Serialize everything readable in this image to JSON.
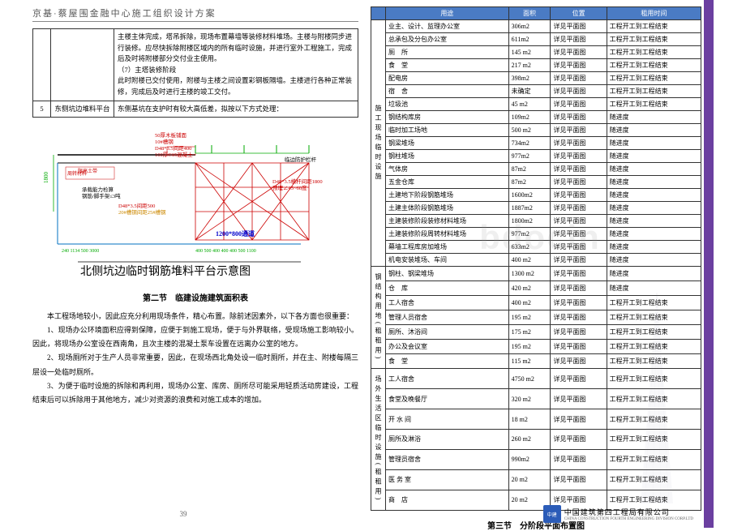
{
  "header": {
    "title": "京基·蔡屋围金融中心施工组织设计方案"
  },
  "topTable": {
    "row1text": "主楼主体完成，塔吊拆除，现场布置幕墙等装修材料堆场。主楼与附楼同步进行装修。应尽快拆除附楼区域内的所有临时设施，并进行室外工程施工，完成后及时将附楼部分交付业主使用。\n（7）主塔装修阶段\n此时附楼已交付使用，附楼与主楼之间设置彩钢板隔墙。主楼进行各种正常装修，完成后及时进行主楼的竣工交付。",
    "row2num": "5",
    "row2label": "东侧坑边堆料平台",
    "row2text": "东侧基坑在支护时有较大高低差，拟按以下方式处理："
  },
  "diagram": {
    "caption": "北侧坑边临时钢筋堆料平台示意图",
    "labels": {
      "a": "50厚木板铺面",
      "b": "10#槽钢",
      "c": "D48*3.5间距400",
      "d": "100厚C15混凝土",
      "e": "临边防护栏杆",
      "f": "D48*3.5横杆间距1800",
      "g": "预埋∠45~60度",
      "h": "D48*3.5间距500",
      "i": "20#槽钢间距25#槽钢",
      "j": "1200*800通道",
      "k": "限高土带",
      "l": "周转材料"
    },
    "dims": [
      "1800",
      "240",
      "1134",
      "500",
      "3000",
      "400",
      "500",
      "400",
      "400",
      "500",
      "1100"
    ]
  },
  "section2": {
    "title": "第二节　临建设施建筑面积表",
    "p1": "本工程场地较小，因此应充分利用现场条件，精心布置。除前述因素外，以下各方面也很重要：",
    "p2": "1、现场办公环境面积应得到保障，应便于到施工现场，便于与外界联络，受现场施工影响较小。因此，将现场办公室设在西南角，且次主楼的混凝土泵车设置在远离办公室的地方。",
    "p3": "2、现场厕所对于生产人员非常重要，因此，在现场西北角处设一临时厕所，并在主、附楼每隔三层设一处临时厕所。",
    "p4": "3、为便于临时设施的拆除和再利用，现场办公室、库房、厕所尽可能采用轻质活动房建设，工程结束后可以拆除用于其他地方，减少对资源的浪费和对施工成本的增加。"
  },
  "section3": {
    "title": "第三节　分阶段平面布置图"
  },
  "mainTable": {
    "headers": [
      "用途",
      "面积",
      "位置",
      "租用时间"
    ],
    "groups": [
      {
        "label": "施工现场临时设施",
        "rows": [
          [
            "业主、设计、监理办公室",
            "306m2",
            "详见平面图",
            "工程开工到工程结束"
          ],
          [
            "总承包及分包办公室",
            "611m2",
            "详见平面图",
            "工程开工到工程结束"
          ],
          [
            "厕　所",
            "145 m2",
            "详见平面图",
            "工程开工到工程结束"
          ],
          [
            "食　堂",
            "217 m2",
            "详见平面图",
            "工程开工到工程结束"
          ],
          [
            "配电房",
            "398m2",
            "详见平面图",
            "工程开工到工程结束"
          ],
          [
            "宿　舍",
            "未确定",
            "详见平面图",
            "工程开工到工程结束"
          ],
          [
            "垃圾池",
            "45 m2",
            "详见平面图",
            "工程开工到工程结束"
          ],
          [
            "钢结构库房",
            "109m2",
            "详见平面图",
            "随进度"
          ],
          [
            "临时加工场地",
            "500 m2",
            "详见平面图",
            "随进度"
          ],
          [
            "钢梁堆场",
            "734m2",
            "详见平面图",
            "随进度"
          ],
          [
            "钢柱堆场",
            "977m2",
            "详见平面图",
            "随进度"
          ],
          [
            "气体房",
            "87m2",
            "详见平面图",
            "随进度"
          ],
          [
            "五金仓库",
            "87m2",
            "详见平面图",
            "随进度"
          ],
          [
            "土建地下阶段钢筋堆场",
            "1600m2",
            "详见平面图",
            "随进度"
          ],
          [
            "土建主体阶段钢筋堆场",
            "1887m2",
            "详见平面图",
            "随进度"
          ],
          [
            "主建装修阶段装修材料堆场",
            "1800m2",
            "详见平面图",
            "随进度"
          ],
          [
            "土建装修阶段周转材料堆场",
            "977m2",
            "详见平面图",
            "随进度"
          ],
          [
            "幕墙工程库房加堆场",
            "633m2",
            "详见平面图",
            "随进度"
          ],
          [
            "机电安装堆场、车间",
            "400 m2",
            "详见平面图",
            "随进度"
          ]
        ]
      },
      {
        "label": "钢结构用地(租租用)",
        "rows": [
          [
            "钢柱、钢梁堆场",
            "1300 m2",
            "详见平面图",
            "随进度"
          ],
          [
            "仓　库",
            "420 m2",
            "详见平面图",
            "随进度"
          ],
          [
            "工人宿舍",
            "400 m2",
            "详见平面图",
            "工程开工到工程结束"
          ],
          [
            "管理人员宿舍",
            "195 m2",
            "详见平面图",
            "工程开工到工程结束"
          ],
          [
            "厕所、沐浴间",
            "175 m2",
            "详见平面图",
            "工程开工到工程结束"
          ],
          [
            "办公及会议室",
            "195 m2",
            "详见平面图",
            "工程开工到工程结束"
          ],
          [
            "食　堂",
            "115 m2",
            "详见平面图",
            "工程开工到工程结束"
          ]
        ]
      },
      {
        "label": "场外生活区临时设施(租租用)",
        "rows": [
          [
            "工人宿舍",
            "4750 m2",
            "详见平面图",
            "工程开工到工程结束"
          ],
          [
            "食堂及晚餐厅",
            "320 m2",
            "详见平面图",
            "工程开工到工程结束"
          ],
          [
            "开 水 间",
            "18 m2",
            "详见平面图",
            "工程开工到工程结束"
          ],
          [
            "厕所及淋浴",
            "260 m2",
            "详见平面图",
            "工程开工到工程结束"
          ],
          [
            "管理员宿舍",
            "990m2",
            "详见平面图",
            "工程开工到工程结束"
          ],
          [
            "医 务 室",
            "20 m2",
            "详见平面图",
            "工程开工到工程结束"
          ],
          [
            "商　店",
            "20 m2",
            "详见平面图",
            "工程开工到工程结束"
          ]
        ]
      }
    ]
  },
  "footer": {
    "pageNum": "39",
    "company": "中国建筑第四工程局有限公司",
    "companyEn": "CHINA CONSTRUCTION FOURTH ENGINEERING DIVISION CORP.LTD",
    "logo": "中建"
  },
  "watermark": "bdocin"
}
